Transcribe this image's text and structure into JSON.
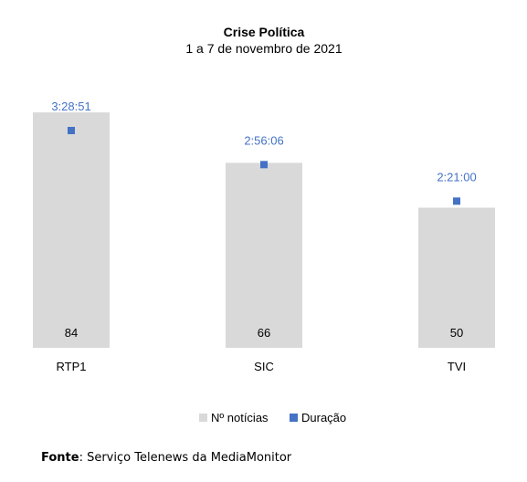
{
  "chart_data": {
    "type": "bar",
    "title": "Crise Política",
    "subtitle": "1 a 7 de novembro de 2021",
    "categories": [
      "RTP1",
      "SIC",
      "TVI"
    ],
    "series": [
      {
        "name": "Nº notícias",
        "type": "bar",
        "color": "#d9d9d9",
        "values": [
          84,
          66,
          50
        ],
        "labels": [
          "84",
          "66",
          "50"
        ]
      },
      {
        "name": "Duração",
        "type": "scatter",
        "color": "#4472c4",
        "values_seconds": [
          12531,
          10566,
          8460
        ],
        "labels": [
          "3:28:51",
          "2:56:06",
          "2:21:00"
        ]
      }
    ],
    "legend": {
      "position": "bottom",
      "entries": [
        "Nº notícias",
        "Duração"
      ]
    },
    "grid": false,
    "ylim": [
      0,
      100
    ]
  },
  "source": {
    "label": "Fonte",
    "text": ": Serviço Telenews da MediaMonitor"
  }
}
